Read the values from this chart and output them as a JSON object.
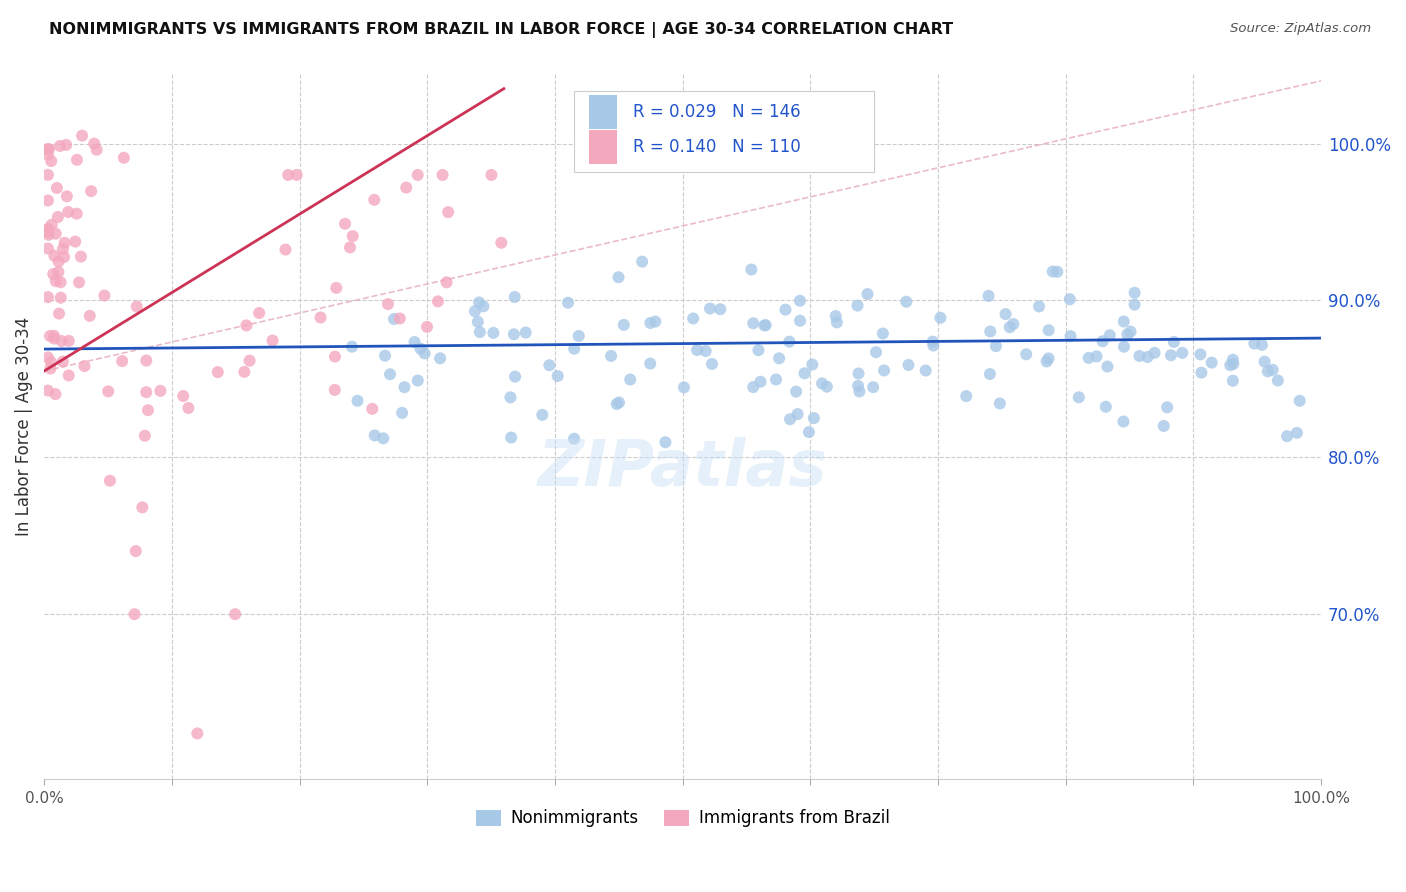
{
  "title": "NONIMMIGRANTS VS IMMIGRANTS FROM BRAZIL IN LABOR FORCE | AGE 30-34 CORRELATION CHART",
  "source": "Source: ZipAtlas.com",
  "ylabel": "In Labor Force | Age 30-34",
  "xlim": [
    0.0,
    1.0
  ],
  "ylim": [
    0.595,
    1.045
  ],
  "right_yticks": [
    1.0,
    0.9,
    0.8,
    0.7
  ],
  "right_yticklabels": [
    "100.0%",
    "90.0%",
    "80.0%",
    "70.0%"
  ],
  "blue_R": 0.029,
  "blue_N": 146,
  "pink_R": 0.14,
  "pink_N": 110,
  "blue_color": "#a8c8e8",
  "pink_color": "#f4a8be",
  "blue_line_color": "#2255bb",
  "pink_line_color": "#cc3355",
  "dashed_line_color": "#e8b0bb",
  "watermark": "ZIPatlas",
  "legend_text_color": "#2255cc",
  "legend_label_color": "#333333"
}
